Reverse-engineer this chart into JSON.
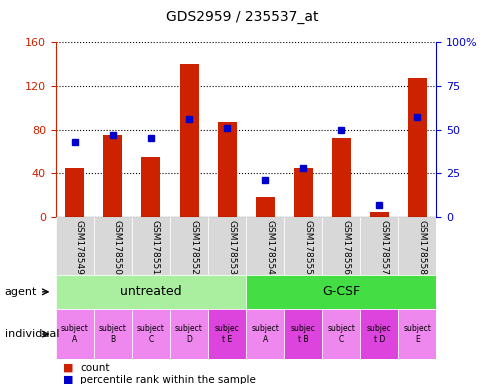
{
  "title": "GDS2959 / 235537_at",
  "samples": [
    "GSM178549",
    "GSM178550",
    "GSM178551",
    "GSM178552",
    "GSM178553",
    "GSM178554",
    "GSM178555",
    "GSM178556",
    "GSM178557",
    "GSM178558"
  ],
  "counts": [
    45,
    75,
    55,
    140,
    87,
    18,
    45,
    72,
    5,
    127
  ],
  "percentile_ranks": [
    43,
    47,
    45,
    56,
    51,
    21,
    28,
    50,
    7,
    57
  ],
  "ylim_left": [
    0,
    160
  ],
  "ylim_right": [
    0,
    100
  ],
  "yticks_left": [
    0,
    40,
    80,
    120,
    160
  ],
  "yticks_right": [
    0,
    25,
    50,
    75,
    100
  ],
  "yticklabels_right": [
    "0",
    "25",
    "50",
    "75",
    "100%"
  ],
  "bar_color": "#cc2200",
  "dot_color": "#0000cc",
  "agent_groups": [
    {
      "label": "untreated",
      "start": 0,
      "end": 5,
      "color": "#aaeea0"
    },
    {
      "label": "G-CSF",
      "start": 5,
      "end": 10,
      "color": "#44dd44"
    }
  ],
  "individual_labels": [
    "subject\nA",
    "subject\nB",
    "subject\nC",
    "subject\nD",
    "subjec\nt E",
    "subject\nA",
    "subjec\nt B",
    "subject\nC",
    "subjec\nt D",
    "subject\nE"
  ],
  "individual_highlight": [
    4,
    6,
    8
  ],
  "individual_color_normal": "#ee88ee",
  "individual_color_highlight": "#dd44dd",
  "agent_row_label": "agent",
  "individual_row_label": "individual",
  "legend_count_label": "count",
  "legend_pct_label": "percentile rank within the sample",
  "background_color": "#ffffff",
  "tick_label_color_left": "#cc2200",
  "tick_label_color_right": "#0000cc",
  "xtick_bg_color": "#d8d8d8",
  "fig_width": 4.85,
  "fig_height": 3.84,
  "fig_dpi": 100
}
